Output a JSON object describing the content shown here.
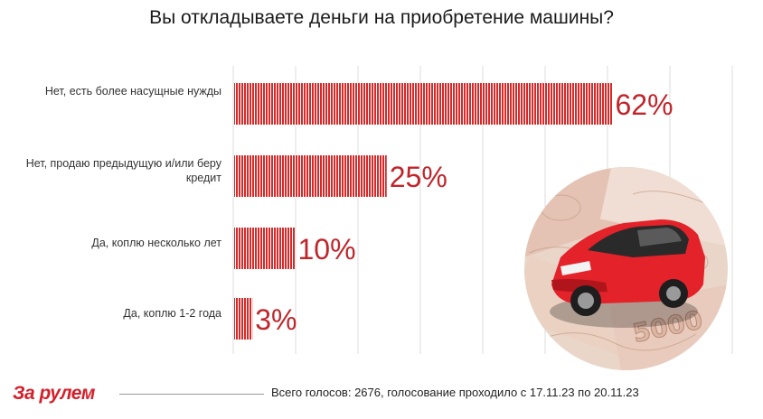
{
  "page": {
    "title": "Вы откладываете деньги на приобретение машины?",
    "logo": "За рулем",
    "footer": "Всего голосов: 2676, голосование проходило с 17.11.23 по 20.11.23"
  },
  "colors": {
    "bar": "#d42a2a",
    "value_label": "#c0252b",
    "logo": "#d4202b"
  },
  "photo": {
    "description_icon": "red-car-on-5000-ruble-banknotes-image"
  },
  "chart_data": {
    "type": "bar",
    "orientation": "horizontal",
    "title": "Вы откладываете деньги на приобретение машины?",
    "xlabel": "",
    "ylabel": "",
    "xlim": [
      0,
      70
    ],
    "grid": true,
    "categories": [
      "Нет, есть более насущные нужды",
      "Нет, продаю предыдущую и/или беру кредит",
      "Да, коплю несколько лет",
      "Да, коплю 1-2 года"
    ],
    "values": [
      62,
      25,
      10,
      3
    ],
    "value_labels": [
      "62%",
      "25%",
      "10%",
      "3%"
    ]
  }
}
